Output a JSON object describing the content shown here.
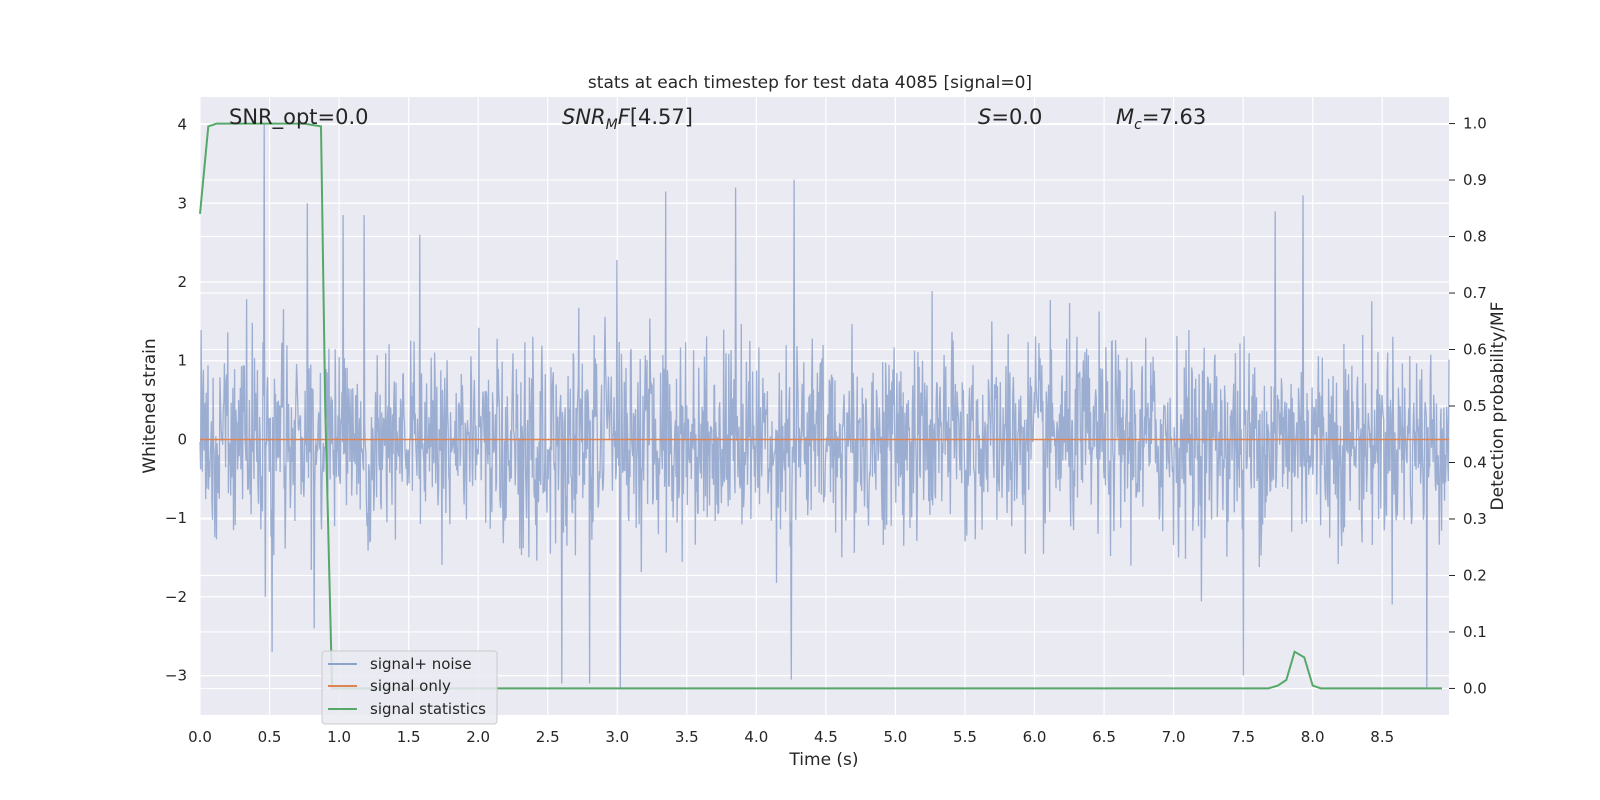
{
  "chart_data": {
    "type": "line",
    "title": "stats at each timestep for test data 4085 [signal=0]",
    "xlabel": "Time (s)",
    "ylabel_left": "Whitened strain",
    "ylabel_right": "Detection probability/MF",
    "xlim": [
      0.0,
      8.98
    ],
    "ylim_left": [
      -3.5,
      4.35
    ],
    "ylim_right": [
      -0.047,
      1.047
    ],
    "x_ticks": [
      "0.0",
      "0.5",
      "1.0",
      "1.5",
      "2.0",
      "2.5",
      "3.0",
      "3.5",
      "4.0",
      "4.5",
      "5.0",
      "5.5",
      "6.0",
      "6.5",
      "7.0",
      "7.5",
      "8.0",
      "8.5"
    ],
    "y_ticks_left": [
      "4",
      "3",
      "2",
      "1",
      "0",
      "−1",
      "−2",
      "−3"
    ],
    "y_ticks_right": [
      "1.0",
      "0.9",
      "0.8",
      "0.7",
      "0.6",
      "0.5",
      "0.4",
      "0.3",
      "0.2",
      "0.1",
      "0.0"
    ],
    "grid": true,
    "annotations": {
      "snr_opt": "SNR_opt=0.0",
      "snr_mf": "[4.57]",
      "s_stat": "=0.0",
      "mc": "=7.63"
    },
    "legend": {
      "placement": "lower-left",
      "entries": [
        "signal+ noise",
        "signal only",
        "signal statistics"
      ]
    },
    "colors": {
      "noise": "#8da2cb",
      "signal": "#dd8452",
      "stats": "#55a868",
      "background": "#eaeaf2",
      "grid": "#ffffff"
    },
    "series": [
      {
        "name": "signal+ noise",
        "axis": "left",
        "description_values": "whitened strain noise, roughly within ±2 with spikes",
        "spikes": [
          {
            "x": 0.46,
            "y": 4.0
          },
          {
            "x": 0.47,
            "y": -2.0
          },
          {
            "x": 0.52,
            "y": -2.7
          },
          {
            "x": 0.77,
            "y": 3.0
          },
          {
            "x": 0.82,
            "y": -2.4
          },
          {
            "x": 1.03,
            "y": 2.85
          },
          {
            "x": 1.18,
            "y": 2.85
          },
          {
            "x": 1.58,
            "y": 2.6
          },
          {
            "x": 2.6,
            "y": -3.1
          },
          {
            "x": 2.8,
            "y": -3.1
          },
          {
            "x": 3.02,
            "y": -3.15
          },
          {
            "x": 3.35,
            "y": 3.15
          },
          {
            "x": 3.85,
            "y": 3.2
          },
          {
            "x": 4.25,
            "y": -3.05
          },
          {
            "x": 4.27,
            "y": 3.3
          },
          {
            "x": 7.5,
            "y": -3.0
          },
          {
            "x": 7.73,
            "y": 2.9
          },
          {
            "x": 7.93,
            "y": 3.1
          },
          {
            "x": 8.82,
            "y": -3.15
          }
        ]
      },
      {
        "name": "signal only",
        "axis": "left",
        "x": [
          0.0,
          8.98
        ],
        "y": [
          0.0,
          0.0
        ]
      },
      {
        "name": "signal statistics",
        "axis": "right",
        "x": [
          0.0,
          0.06,
          0.12,
          0.25,
          0.5,
          0.75,
          0.87,
          0.9,
          0.95,
          1.0,
          2.0,
          4.0,
          6.0,
          7.6,
          7.68,
          7.75,
          7.81,
          7.87,
          7.94,
          8.0,
          8.06,
          8.2,
          8.93
        ],
        "y": [
          0.84,
          0.995,
          1.0,
          1.0,
          1.0,
          1.0,
          0.995,
          0.5,
          0.0,
          0.0,
          0.0,
          0.0,
          0.0,
          0.0,
          0.0,
          0.005,
          0.015,
          0.065,
          0.055,
          0.005,
          0.0,
          0.0,
          0.0
        ]
      }
    ]
  }
}
